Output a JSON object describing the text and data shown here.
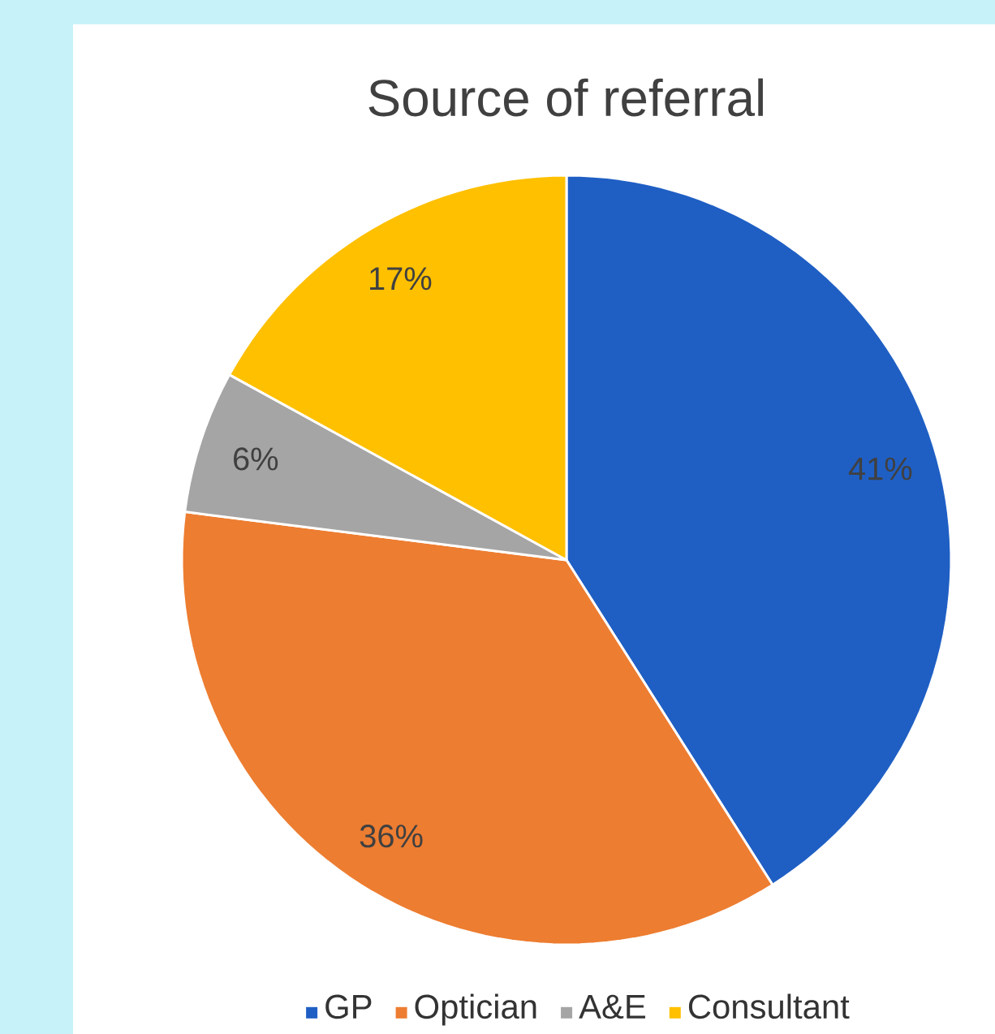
{
  "chart_data": {
    "type": "pie",
    "title": "Source of referral",
    "categories": [
      "GP",
      "Optician",
      "A&E",
      "Consultant"
    ],
    "values": [
      41,
      36,
      6,
      17
    ],
    "value_labels": [
      "41%",
      "36%",
      "6%",
      "17%"
    ],
    "colors": [
      "#1f5fc4",
      "#ed7d31",
      "#a5a5a5",
      "#ffc000"
    ],
    "legend": "bottom"
  }
}
